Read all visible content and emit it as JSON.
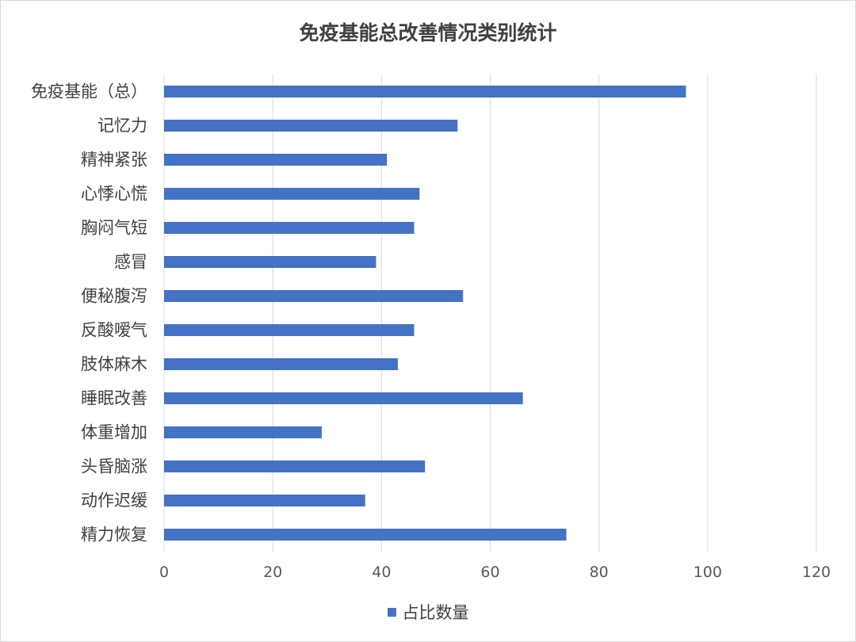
{
  "chart_data": {
    "type": "bar",
    "orientation": "horizontal",
    "title": "免疫基能总改善情况类别统计",
    "categories": [
      "免疫基能（总）",
      "记忆力",
      "精神紧张",
      "心悸心慌",
      "胸闷气短",
      "感冒",
      "便秘腹泻",
      "反酸嗳气",
      "肢体麻木",
      "睡眠改善",
      "体重增加",
      "头昏脑涨",
      "动作迟缓",
      "精力恢复"
    ],
    "series": [
      {
        "name": "占比数量",
        "values": [
          96,
          54,
          41,
          47,
          46,
          39,
          55,
          46,
          43,
          66,
          29,
          48,
          37,
          74
        ]
      }
    ],
    "xlim": [
      0,
      120
    ],
    "xticks": [
      "0",
      "20",
      "40",
      "60",
      "80",
      "100",
      "120"
    ],
    "grid": "vertical",
    "legend_position": "bottom",
    "bar_color": "#4472c4"
  }
}
